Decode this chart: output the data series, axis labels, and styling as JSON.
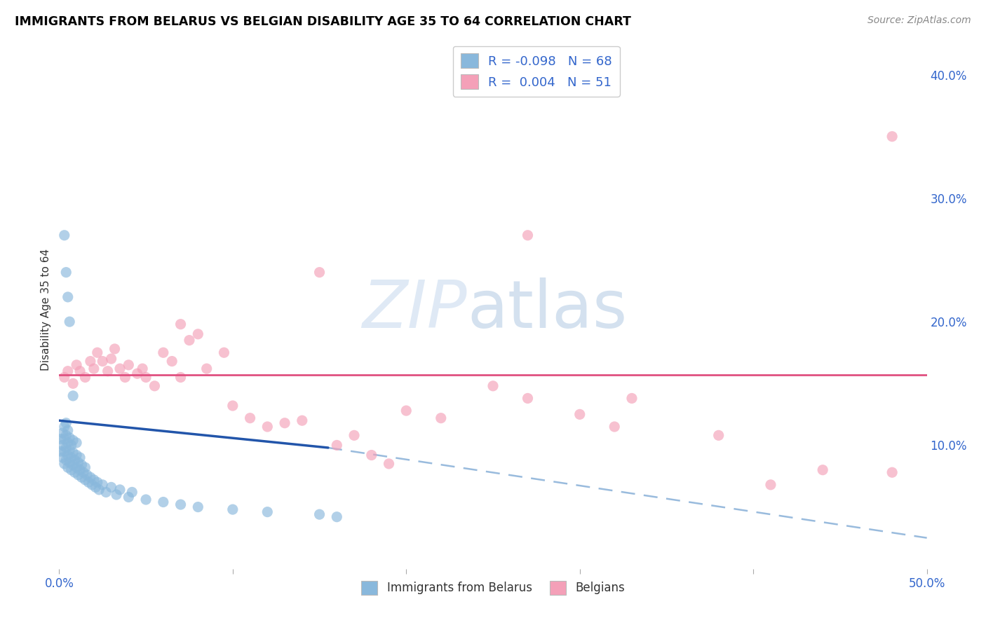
{
  "title": "IMMIGRANTS FROM BELARUS VS BELGIAN DISABILITY AGE 35 TO 64 CORRELATION CHART",
  "source": "Source: ZipAtlas.com",
  "ylabel": "Disability Age 35 to 64",
  "xlim": [
    0.0,
    0.5
  ],
  "ylim": [
    0.0,
    0.42
  ],
  "x_ticks": [
    0.0,
    0.1,
    0.2,
    0.3,
    0.4,
    0.5
  ],
  "x_tick_labels": [
    "0.0%",
    "",
    "",
    "",
    "",
    "50.0%"
  ],
  "y_ticks_right": [
    0.1,
    0.2,
    0.3,
    0.4
  ],
  "y_tick_labels_right": [
    "10.0%",
    "20.0%",
    "30.0%",
    "40.0%"
  ],
  "legend_labels": [
    "Immigrants from Belarus",
    "Belgians"
  ],
  "legend_r_values": [
    "-0.098",
    "0.004"
  ],
  "legend_n_values": [
    "68",
    "51"
  ],
  "blue_color": "#89B8DC",
  "pink_color": "#F4A0B8",
  "trend_blue_solid": "#2255AA",
  "trend_pink_solid": "#E05080",
  "trend_dashed_color": "#99BBDD",
  "watermark_zip": "ZIP",
  "watermark_atlas": "atlas",
  "blue_scatter_x": [
    0.001,
    0.001,
    0.002,
    0.002,
    0.002,
    0.003,
    0.003,
    0.003,
    0.003,
    0.004,
    0.004,
    0.004,
    0.004,
    0.005,
    0.005,
    0.005,
    0.005,
    0.006,
    0.006,
    0.006,
    0.007,
    0.007,
    0.007,
    0.008,
    0.008,
    0.008,
    0.009,
    0.009,
    0.01,
    0.01,
    0.01,
    0.011,
    0.011,
    0.012,
    0.012,
    0.013,
    0.013,
    0.014,
    0.015,
    0.015,
    0.016,
    0.017,
    0.018,
    0.019,
    0.02,
    0.021,
    0.022,
    0.023,
    0.025,
    0.027,
    0.03,
    0.033,
    0.035,
    0.04,
    0.042,
    0.05,
    0.06,
    0.07,
    0.08,
    0.1,
    0.12,
    0.15,
    0.16,
    0.003,
    0.004,
    0.005,
    0.006,
    0.008
  ],
  "blue_scatter_y": [
    0.095,
    0.105,
    0.09,
    0.1,
    0.11,
    0.085,
    0.095,
    0.105,
    0.115,
    0.088,
    0.098,
    0.108,
    0.118,
    0.082,
    0.092,
    0.102,
    0.112,
    0.086,
    0.096,
    0.106,
    0.08,
    0.09,
    0.1,
    0.084,
    0.094,
    0.104,
    0.078,
    0.088,
    0.082,
    0.092,
    0.102,
    0.076,
    0.086,
    0.08,
    0.09,
    0.074,
    0.084,
    0.078,
    0.072,
    0.082,
    0.076,
    0.07,
    0.074,
    0.068,
    0.072,
    0.066,
    0.07,
    0.064,
    0.068,
    0.062,
    0.066,
    0.06,
    0.064,
    0.058,
    0.062,
    0.056,
    0.054,
    0.052,
    0.05,
    0.048,
    0.046,
    0.044,
    0.042,
    0.27,
    0.24,
    0.22,
    0.2,
    0.14
  ],
  "pink_scatter_x": [
    0.003,
    0.005,
    0.008,
    0.01,
    0.012,
    0.015,
    0.018,
    0.02,
    0.022,
    0.025,
    0.028,
    0.03,
    0.032,
    0.035,
    0.038,
    0.04,
    0.045,
    0.048,
    0.05,
    0.055,
    0.06,
    0.065,
    0.07,
    0.075,
    0.08,
    0.085,
    0.095,
    0.1,
    0.11,
    0.12,
    0.13,
    0.14,
    0.16,
    0.18,
    0.2,
    0.22,
    0.25,
    0.27,
    0.27,
    0.3,
    0.32,
    0.33,
    0.38,
    0.41,
    0.44,
    0.48,
    0.48,
    0.15,
    0.17,
    0.19,
    0.07
  ],
  "pink_scatter_y": [
    0.155,
    0.16,
    0.15,
    0.165,
    0.16,
    0.155,
    0.168,
    0.162,
    0.175,
    0.168,
    0.16,
    0.17,
    0.178,
    0.162,
    0.155,
    0.165,
    0.158,
    0.162,
    0.155,
    0.148,
    0.175,
    0.168,
    0.198,
    0.185,
    0.19,
    0.162,
    0.175,
    0.132,
    0.122,
    0.115,
    0.118,
    0.12,
    0.1,
    0.092,
    0.128,
    0.122,
    0.148,
    0.138,
    0.27,
    0.125,
    0.115,
    0.138,
    0.108,
    0.068,
    0.08,
    0.078,
    0.35,
    0.24,
    0.108,
    0.085,
    0.155
  ],
  "trend_blue_x1": 0.0,
  "trend_blue_y1": 0.12,
  "trend_blue_x2": 0.155,
  "trend_blue_y2": 0.098,
  "trend_dashed_x1": 0.155,
  "trend_dashed_y1": 0.098,
  "trend_dashed_x2": 0.5,
  "trend_dashed_y2": 0.025,
  "trend_pink_y": 0.157
}
